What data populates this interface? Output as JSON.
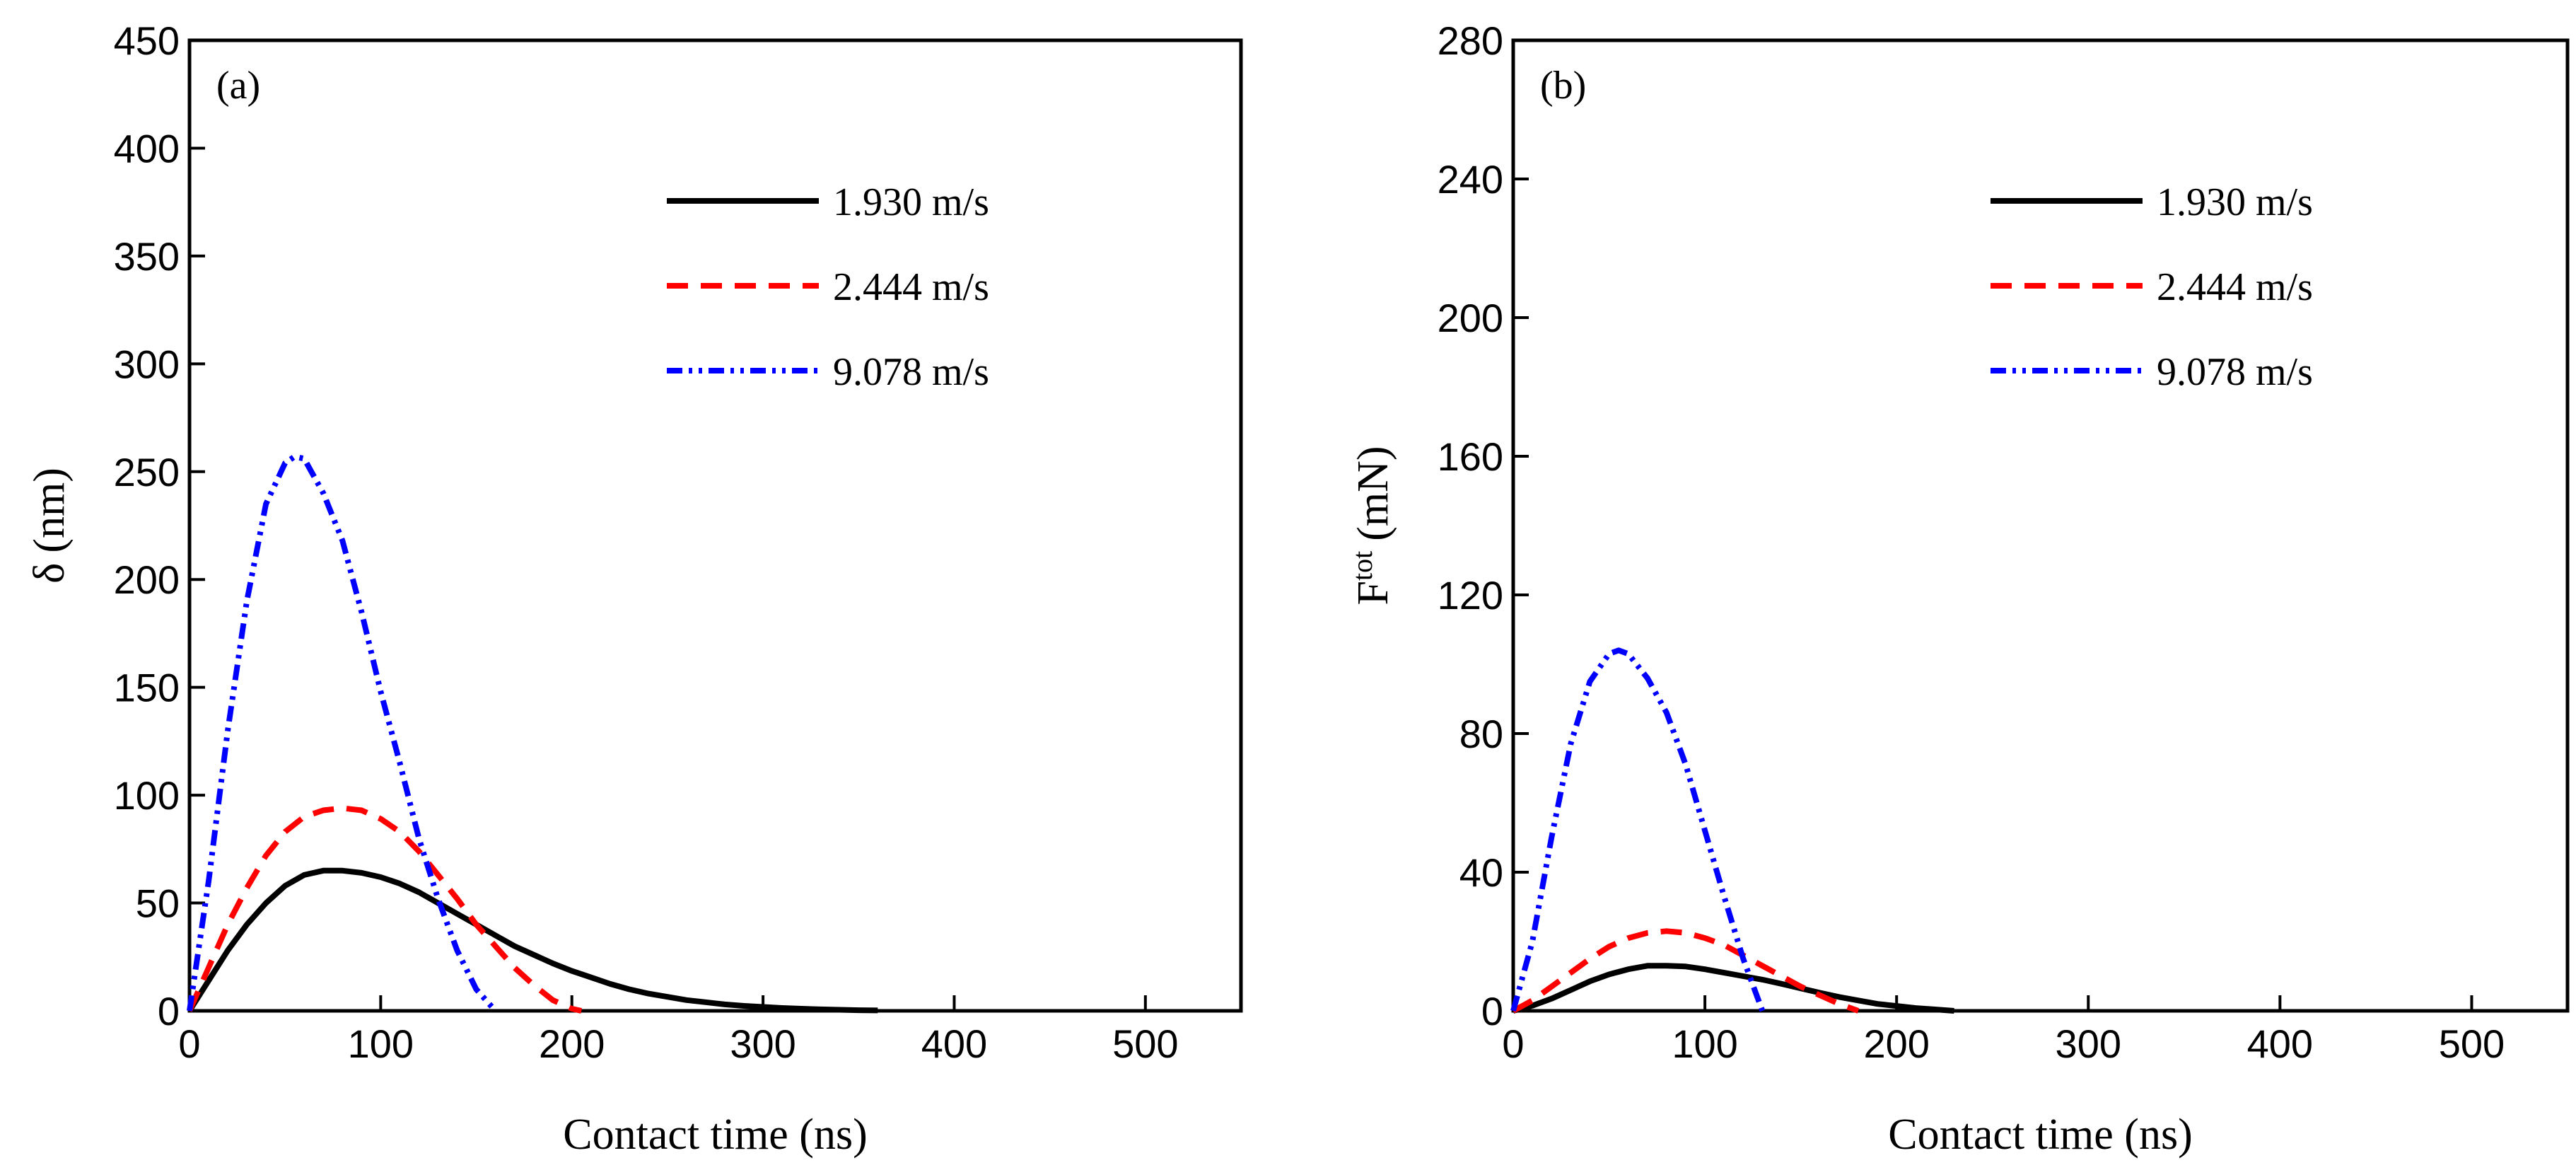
{
  "chart_data": [
    {
      "type": "line",
      "panel_label": "(a)",
      "xlabel": "Contact time (ns)",
      "ylabel": "δ (nm)",
      "ylabel_symbol": "δ",
      "ylabel_unit": "(nm)",
      "xlim": [
        0,
        550
      ],
      "ylim": [
        0,
        450
      ],
      "xticks": [
        0,
        100,
        200,
        300,
        400,
        500
      ],
      "yticks": [
        0,
        50,
        100,
        150,
        200,
        250,
        300,
        350,
        400,
        450
      ],
      "legend_position": "top-right",
      "series": [
        {
          "name": "1.930 m/s",
          "color": "#000000",
          "dash": "solid",
          "x": [
            0,
            10,
            20,
            30,
            40,
            50,
            60,
            70,
            80,
            90,
            100,
            110,
            120,
            130,
            140,
            150,
            160,
            170,
            180,
            190,
            200,
            210,
            220,
            230,
            240,
            250,
            260,
            270,
            280,
            290,
            300,
            310,
            320,
            330,
            340,
            350,
            360
          ],
          "y": [
            0,
            14,
            28,
            40,
            50,
            58,
            63,
            65,
            65,
            64,
            62,
            59,
            55,
            50,
            45,
            40,
            35,
            30,
            26,
            22,
            18.5,
            15.5,
            12.5,
            10,
            8,
            6.5,
            5,
            4,
            3,
            2.3,
            1.8,
            1.3,
            1,
            0.7,
            0.5,
            0.3,
            0.2
          ]
        },
        {
          "name": "2.444 m/s",
          "color": "#ff0000",
          "dash": "dashed",
          "x": [
            0,
            10,
            20,
            30,
            40,
            50,
            60,
            70,
            80,
            90,
            100,
            110,
            120,
            130,
            140,
            150,
            160,
            170,
            180,
            190,
            200,
            205
          ],
          "y": [
            0,
            20,
            40,
            57,
            72,
            83,
            90,
            93,
            94,
            93,
            89,
            83,
            74,
            63,
            52,
            40,
            30,
            20,
            12,
            5,
            1,
            0
          ]
        },
        {
          "name": "9.078 m/s",
          "color": "#0000ff",
          "dash": "dash-dot-dot",
          "x": [
            0,
            10,
            20,
            30,
            40,
            50,
            55,
            60,
            70,
            80,
            90,
            100,
            110,
            120,
            130,
            140,
            150,
            160
          ],
          "y": [
            0,
            60,
            130,
            190,
            235,
            254,
            257,
            256,
            240,
            218,
            185,
            148,
            115,
            80,
            52,
            28,
            10,
            0
          ]
        }
      ]
    },
    {
      "type": "line",
      "panel_label": "(b)",
      "xlabel": "Contact time (ns)",
      "ylabel": "F^tot (mN)",
      "ylabel_symbol": "F",
      "ylabel_superscript": "tot",
      "ylabel_unit": "(mN)",
      "xlim": [
        0,
        550
      ],
      "ylim": [
        0,
        280
      ],
      "xticks": [
        0,
        100,
        200,
        300,
        400,
        500
      ],
      "yticks": [
        0,
        40,
        80,
        120,
        160,
        200,
        240,
        280
      ],
      "legend_position": "top-right",
      "series": [
        {
          "name": "1.930 m/s",
          "color": "#000000",
          "dash": "solid",
          "x": [
            0,
            10,
            20,
            30,
            40,
            50,
            60,
            70,
            80,
            90,
            100,
            110,
            120,
            130,
            140,
            150,
            160,
            170,
            180,
            190,
            200,
            210,
            220,
            230
          ],
          "y": [
            0,
            1.5,
            3.5,
            6,
            8.5,
            10.5,
            12,
            13,
            13,
            12.8,
            12,
            11,
            10,
            9,
            7.8,
            6.5,
            5.2,
            4,
            3,
            2,
            1.4,
            0.8,
            0.4,
            0
          ]
        },
        {
          "name": "2.444 m/s",
          "color": "#ff0000",
          "dash": "dashed",
          "x": [
            0,
            10,
            20,
            30,
            40,
            50,
            60,
            70,
            80,
            90,
            100,
            110,
            120,
            130,
            140,
            150,
            160,
            170,
            180
          ],
          "y": [
            0,
            3,
            7,
            11,
            15,
            18.5,
            21,
            22.5,
            23,
            22.5,
            21,
            19,
            16,
            13,
            10,
            7,
            4.5,
            2,
            0
          ]
        },
        {
          "name": "9.078 m/s",
          "color": "#0000ff",
          "dash": "dash-dot-dot",
          "x": [
            0,
            10,
            20,
            30,
            40,
            50,
            55,
            60,
            70,
            80,
            90,
            100,
            110,
            120,
            130
          ],
          "y": [
            0,
            20,
            50,
            77,
            95,
            103,
            104,
            103,
            96,
            86,
            71,
            52,
            33,
            15,
            0
          ]
        }
      ]
    }
  ]
}
